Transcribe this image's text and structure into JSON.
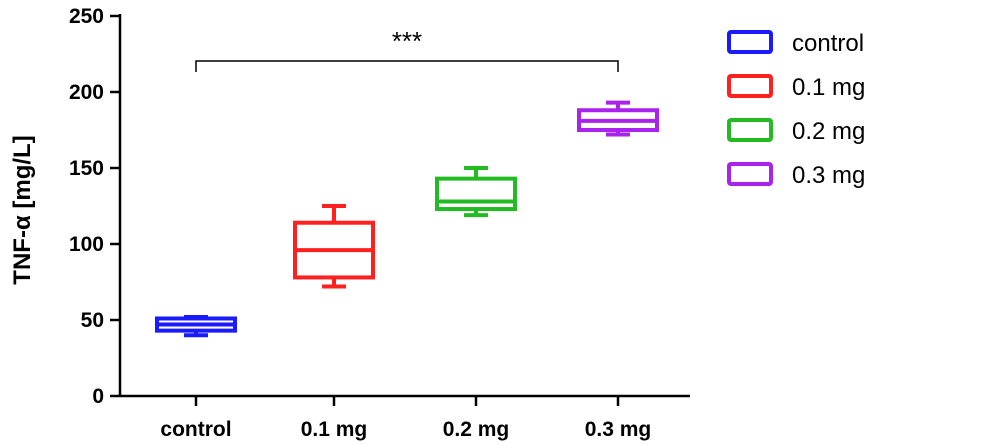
{
  "chart_data": {
    "type": "box",
    "ylabel": "TNF-α [mg/L]",
    "ylim": [
      0,
      250
    ],
    "yticks": [
      "0",
      "50",
      "100",
      "150",
      "200",
      "250"
    ],
    "categories": [
      "control",
      "0.1 mg",
      "0.2 mg",
      "0.3 mg"
    ],
    "legend_position": "right",
    "series": [
      {
        "name": "control",
        "color": "#1a1aff",
        "min": 40,
        "q1": 43,
        "median": 47,
        "q3": 51,
        "max": 52
      },
      {
        "name": "0.1 mg",
        "color": "#ff2020",
        "min": 72,
        "q1": 78,
        "median": 96,
        "q3": 114,
        "max": 125
      },
      {
        "name": "0.2 mg",
        "color": "#22bb22",
        "min": 119,
        "q1": 123,
        "median": 128,
        "q3": 143,
        "max": 150
      },
      {
        "name": "0.3 mg",
        "color": "#aa22ee",
        "min": 172,
        "q1": 175,
        "median": 181,
        "q3": 188,
        "max": 193
      }
    ],
    "annotations": [
      {
        "text": "***",
        "from": "control",
        "to": "0.3 mg"
      }
    ]
  }
}
